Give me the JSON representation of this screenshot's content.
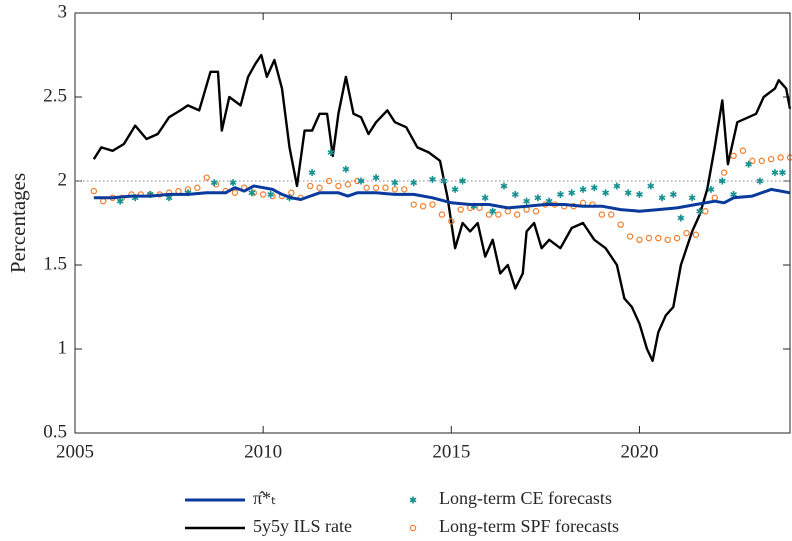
{
  "chart_data": {
    "type": "line",
    "y_label": "Percentages",
    "xlim": [
      2005,
      2024
    ],
    "ylim": [
      0.5,
      3
    ],
    "xticks": [
      2005,
      2010,
      2015,
      2020
    ],
    "yticks": [
      0.5,
      1,
      1.5,
      2,
      2.5,
      3
    ],
    "hline": 2,
    "series": [
      {
        "name": "π̂*ₜ",
        "color": "#0a3a9c",
        "style": "line",
        "width": 3,
        "x": [
          2005.5,
          2006,
          2006.5,
          2007,
          2007.5,
          2008,
          2008.5,
          2009,
          2009.25,
          2009.5,
          2009.75,
          2010,
          2010.25,
          2010.5,
          2010.75,
          2011,
          2011.25,
          2011.5,
          2012,
          2012.25,
          2012.5,
          2013,
          2013.5,
          2014,
          2014.5,
          2015,
          2015.5,
          2016,
          2016.5,
          2017,
          2017.5,
          2018,
          2018.5,
          2019,
          2019.5,
          2020,
          2020.5,
          2021,
          2021.5,
          2022,
          2022.25,
          2022.5,
          2023,
          2023.5,
          2024
        ],
        "values": [
          1.9,
          1.9,
          1.91,
          1.91,
          1.92,
          1.92,
          1.93,
          1.93,
          1.96,
          1.94,
          1.97,
          1.96,
          1.95,
          1.92,
          1.9,
          1.89,
          1.91,
          1.93,
          1.93,
          1.91,
          1.93,
          1.93,
          1.92,
          1.92,
          1.9,
          1.87,
          1.86,
          1.86,
          1.84,
          1.85,
          1.86,
          1.86,
          1.85,
          1.85,
          1.83,
          1.82,
          1.83,
          1.84,
          1.86,
          1.88,
          1.87,
          1.9,
          1.91,
          1.95,
          1.93
        ]
      },
      {
        "name": "5y5y ILS rate",
        "color": "#000000",
        "style": "line",
        "width": 2.4,
        "x": [
          2005.5,
          2005.7,
          2006,
          2006.3,
          2006.6,
          2006.9,
          2007.2,
          2007.5,
          2007.8,
          2008,
          2008.3,
          2008.6,
          2008.8,
          2008.9,
          2009.1,
          2009.4,
          2009.6,
          2009.8,
          2009.95,
          2010.1,
          2010.3,
          2010.5,
          2010.7,
          2010.9,
          2011.1,
          2011.3,
          2011.5,
          2011.7,
          2011.85,
          2012,
          2012.2,
          2012.4,
          2012.6,
          2012.8,
          2013,
          2013.3,
          2013.5,
          2013.8,
          2014.1,
          2014.4,
          2014.7,
          2014.9,
          2015.1,
          2015.3,
          2015.5,
          2015.7,
          2015.9,
          2016.1,
          2016.3,
          2016.5,
          2016.7,
          2016.9,
          2017,
          2017.2,
          2017.4,
          2017.6,
          2017.9,
          2018.2,
          2018.5,
          2018.8,
          2019.1,
          2019.4,
          2019.6,
          2019.8,
          2020,
          2020.2,
          2020.35,
          2020.5,
          2020.7,
          2020.9,
          2021.1,
          2021.4,
          2021.6,
          2021.8,
          2022,
          2022.2,
          2022.35,
          2022.6,
          2022.9,
          2023.1,
          2023.3,
          2023.6,
          2023.7,
          2023.9,
          2024
        ],
        "values": [
          2.13,
          2.2,
          2.18,
          2.22,
          2.33,
          2.25,
          2.28,
          2.38,
          2.42,
          2.45,
          2.42,
          2.65,
          2.65,
          2.3,
          2.5,
          2.45,
          2.62,
          2.7,
          2.75,
          2.62,
          2.72,
          2.55,
          2.2,
          1.97,
          2.3,
          2.3,
          2.4,
          2.4,
          2.15,
          2.4,
          2.62,
          2.4,
          2.38,
          2.28,
          2.35,
          2.42,
          2.35,
          2.32,
          2.2,
          2.17,
          2.12,
          1.9,
          1.6,
          1.75,
          1.7,
          1.75,
          1.55,
          1.65,
          1.45,
          1.5,
          1.36,
          1.45,
          1.7,
          1.75,
          1.6,
          1.65,
          1.6,
          1.72,
          1.75,
          1.65,
          1.6,
          1.5,
          1.3,
          1.25,
          1.15,
          1,
          0.93,
          1.1,
          1.2,
          1.25,
          1.5,
          1.7,
          1.8,
          1.95,
          2.2,
          2.48,
          2.1,
          2.35,
          2.38,
          2.4,
          2.5,
          2.55,
          2.6,
          2.55,
          2.43
        ]
      },
      {
        "name": "Long-term CE forecasts",
        "color": "#16908f",
        "style": "star",
        "x": [
          2006.2,
          2006.6,
          2007,
          2007.5,
          2008,
          2008.7,
          2009.2,
          2009.7,
          2010.2,
          2010.7,
          2011.3,
          2011.8,
          2012.2,
          2012.6,
          2013,
          2013.5,
          2014,
          2014.5,
          2014.8,
          2015.1,
          2015.3,
          2015.6,
          2015.9,
          2016.1,
          2016.4,
          2016.7,
          2017,
          2017.3,
          2017.6,
          2017.9,
          2018.2,
          2018.5,
          2018.8,
          2019.1,
          2019.4,
          2019.7,
          2020,
          2020.3,
          2020.6,
          2020.9,
          2021.1,
          2021.4,
          2021.6,
          2021.9,
          2022.2,
          2022.5,
          2022.9,
          2023.2,
          2023.6,
          2023.8
        ],
        "values": [
          1.88,
          1.9,
          1.92,
          1.9,
          1.93,
          1.99,
          1.99,
          1.93,
          1.92,
          1.9,
          2.05,
          2.17,
          2.07,
          2,
          2.02,
          1.99,
          1.99,
          2.01,
          2,
          1.95,
          2,
          1.85,
          1.9,
          1.82,
          1.97,
          1.92,
          1.88,
          1.9,
          1.88,
          1.92,
          1.93,
          1.95,
          1.96,
          1.93,
          1.97,
          1.93,
          1.92,
          1.97,
          1.9,
          1.92,
          1.78,
          1.9,
          1.82,
          1.95,
          2,
          1.92,
          2.1,
          2,
          2.05,
          2.05
        ]
      },
      {
        "name": "Long-term SPF forecasts",
        "color": "#f07d2a",
        "style": "circle",
        "x": [
          2005.5,
          2005.75,
          2006,
          2006.25,
          2006.5,
          2006.75,
          2007,
          2007.25,
          2007.5,
          2007.75,
          2008,
          2008.25,
          2008.5,
          2008.75,
          2009,
          2009.25,
          2009.5,
          2009.75,
          2010,
          2010.25,
          2010.5,
          2010.75,
          2011,
          2011.25,
          2011.5,
          2011.75,
          2012,
          2012.25,
          2012.5,
          2012.75,
          2013,
          2013.25,
          2013.5,
          2013.75,
          2014,
          2014.25,
          2014.5,
          2014.75,
          2015,
          2015.25,
          2015.5,
          2015.75,
          2016,
          2016.25,
          2016.5,
          2016.75,
          2017,
          2017.25,
          2017.5,
          2017.75,
          2018,
          2018.25,
          2018.5,
          2018.75,
          2019,
          2019.25,
          2019.5,
          2019.75,
          2020,
          2020.25,
          2020.5,
          2020.75,
          2021,
          2021.25,
          2021.5,
          2021.75,
          2022,
          2022.25,
          2022.5,
          2022.75,
          2023,
          2023.25,
          2023.5,
          2023.75,
          2024
        ],
        "values": [
          1.94,
          1.88,
          1.9,
          1.9,
          1.92,
          1.92,
          1.92,
          1.92,
          1.93,
          1.94,
          1.95,
          1.96,
          2.02,
          1.98,
          1.94,
          1.93,
          1.96,
          1.93,
          1.92,
          1.91,
          1.91,
          1.93,
          1.9,
          1.97,
          1.96,
          2,
          1.97,
          1.98,
          2,
          1.96,
          1.96,
          1.96,
          1.95,
          1.95,
          1.86,
          1.85,
          1.86,
          1.8,
          1.76,
          1.83,
          1.84,
          1.84,
          1.8,
          1.8,
          1.82,
          1.8,
          1.83,
          1.82,
          1.86,
          1.86,
          1.85,
          1.85,
          1.87,
          1.86,
          1.8,
          1.8,
          1.74,
          1.67,
          1.65,
          1.66,
          1.66,
          1.65,
          1.66,
          1.69,
          1.68,
          1.82,
          1.9,
          2.05,
          2.15,
          2.18,
          2.12,
          2.12,
          2.13,
          2.14,
          2.14
        ]
      }
    ]
  }
}
